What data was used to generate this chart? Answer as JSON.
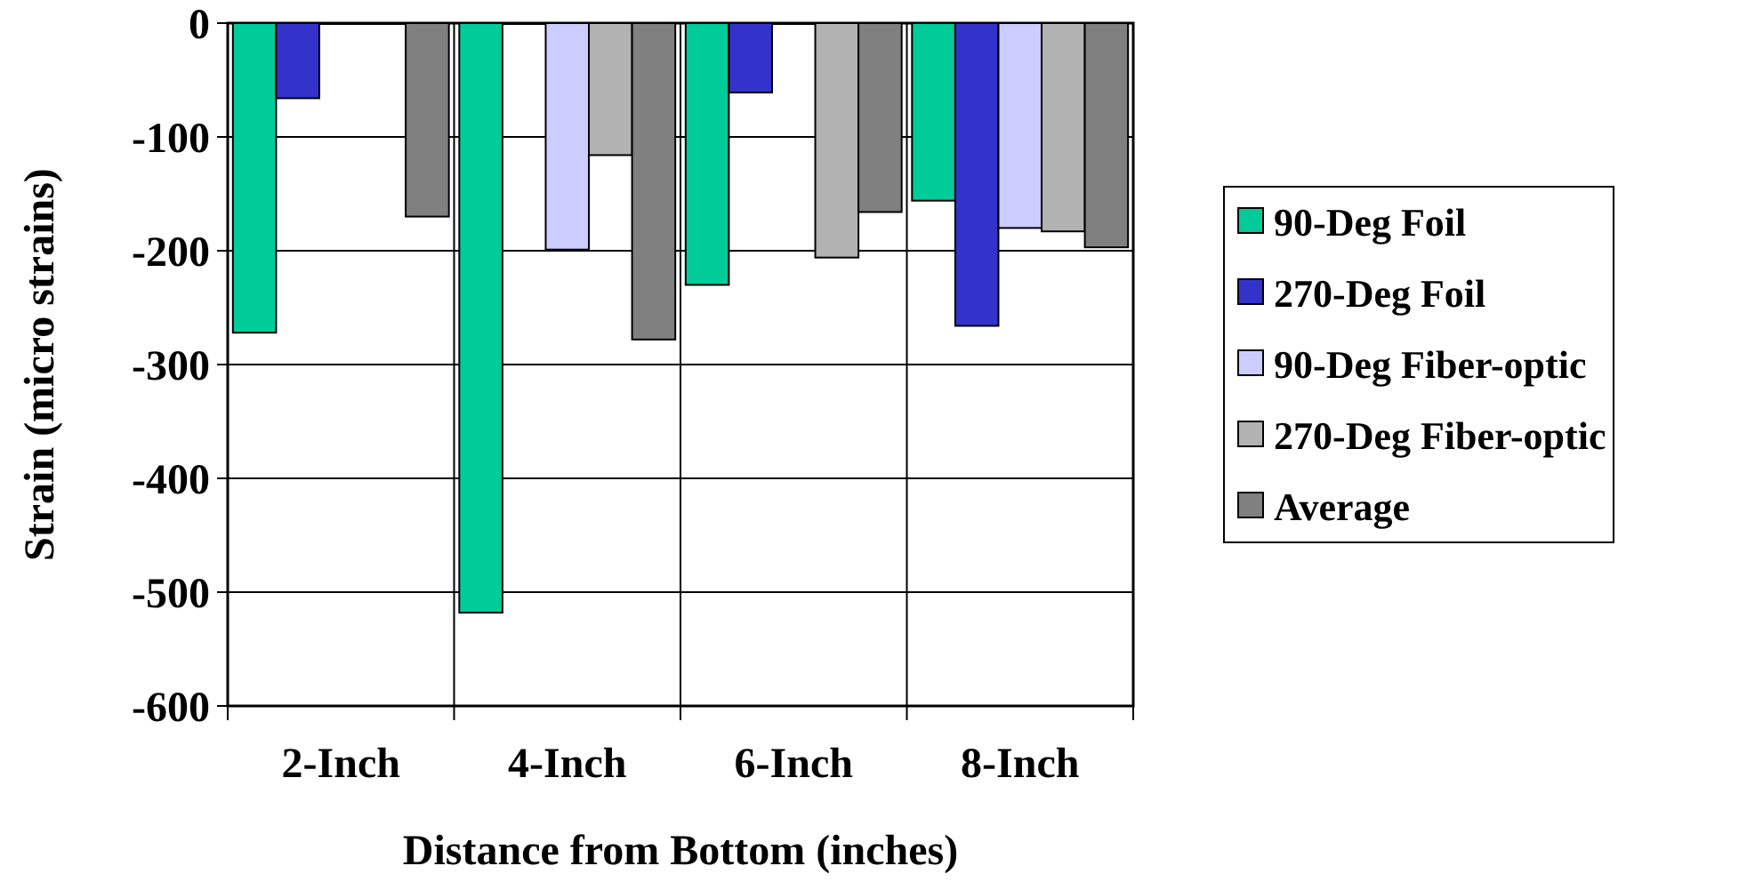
{
  "chart_data": {
    "type": "bar",
    "xlabel": "Distance from Bottom (inches)",
    "ylabel": "Strain (micro strains)",
    "categories": [
      "2-Inch",
      "4-Inch",
      "6-Inch",
      "8-Inch"
    ],
    "series": [
      {
        "name": "90-Deg Foil",
        "color": "#00cc99",
        "values": [
          -272,
          -518,
          -230,
          -156
        ]
      },
      {
        "name": "270-Deg Foil",
        "color": "#3333cc",
        "values": [
          -66,
          0,
          -61,
          -266
        ]
      },
      {
        "name": "90-Deg Fiber-optic",
        "color": "#ccccff",
        "values": [
          0,
          -199,
          0,
          -180
        ]
      },
      {
        "name": "270-Deg Fiber-optic",
        "color": "#b2b2b2",
        "values": [
          0,
          -116,
          -206,
          -183
        ]
      },
      {
        "name": "Average",
        "color": "#808080",
        "values": [
          -170,
          -278,
          -166,
          -197
        ]
      }
    ],
    "ylim": [
      -600,
      0
    ],
    "yticks": [
      -600,
      -500,
      -400,
      -300,
      -200,
      -100,
      0
    ],
    "grid": true,
    "legend": "right"
  }
}
